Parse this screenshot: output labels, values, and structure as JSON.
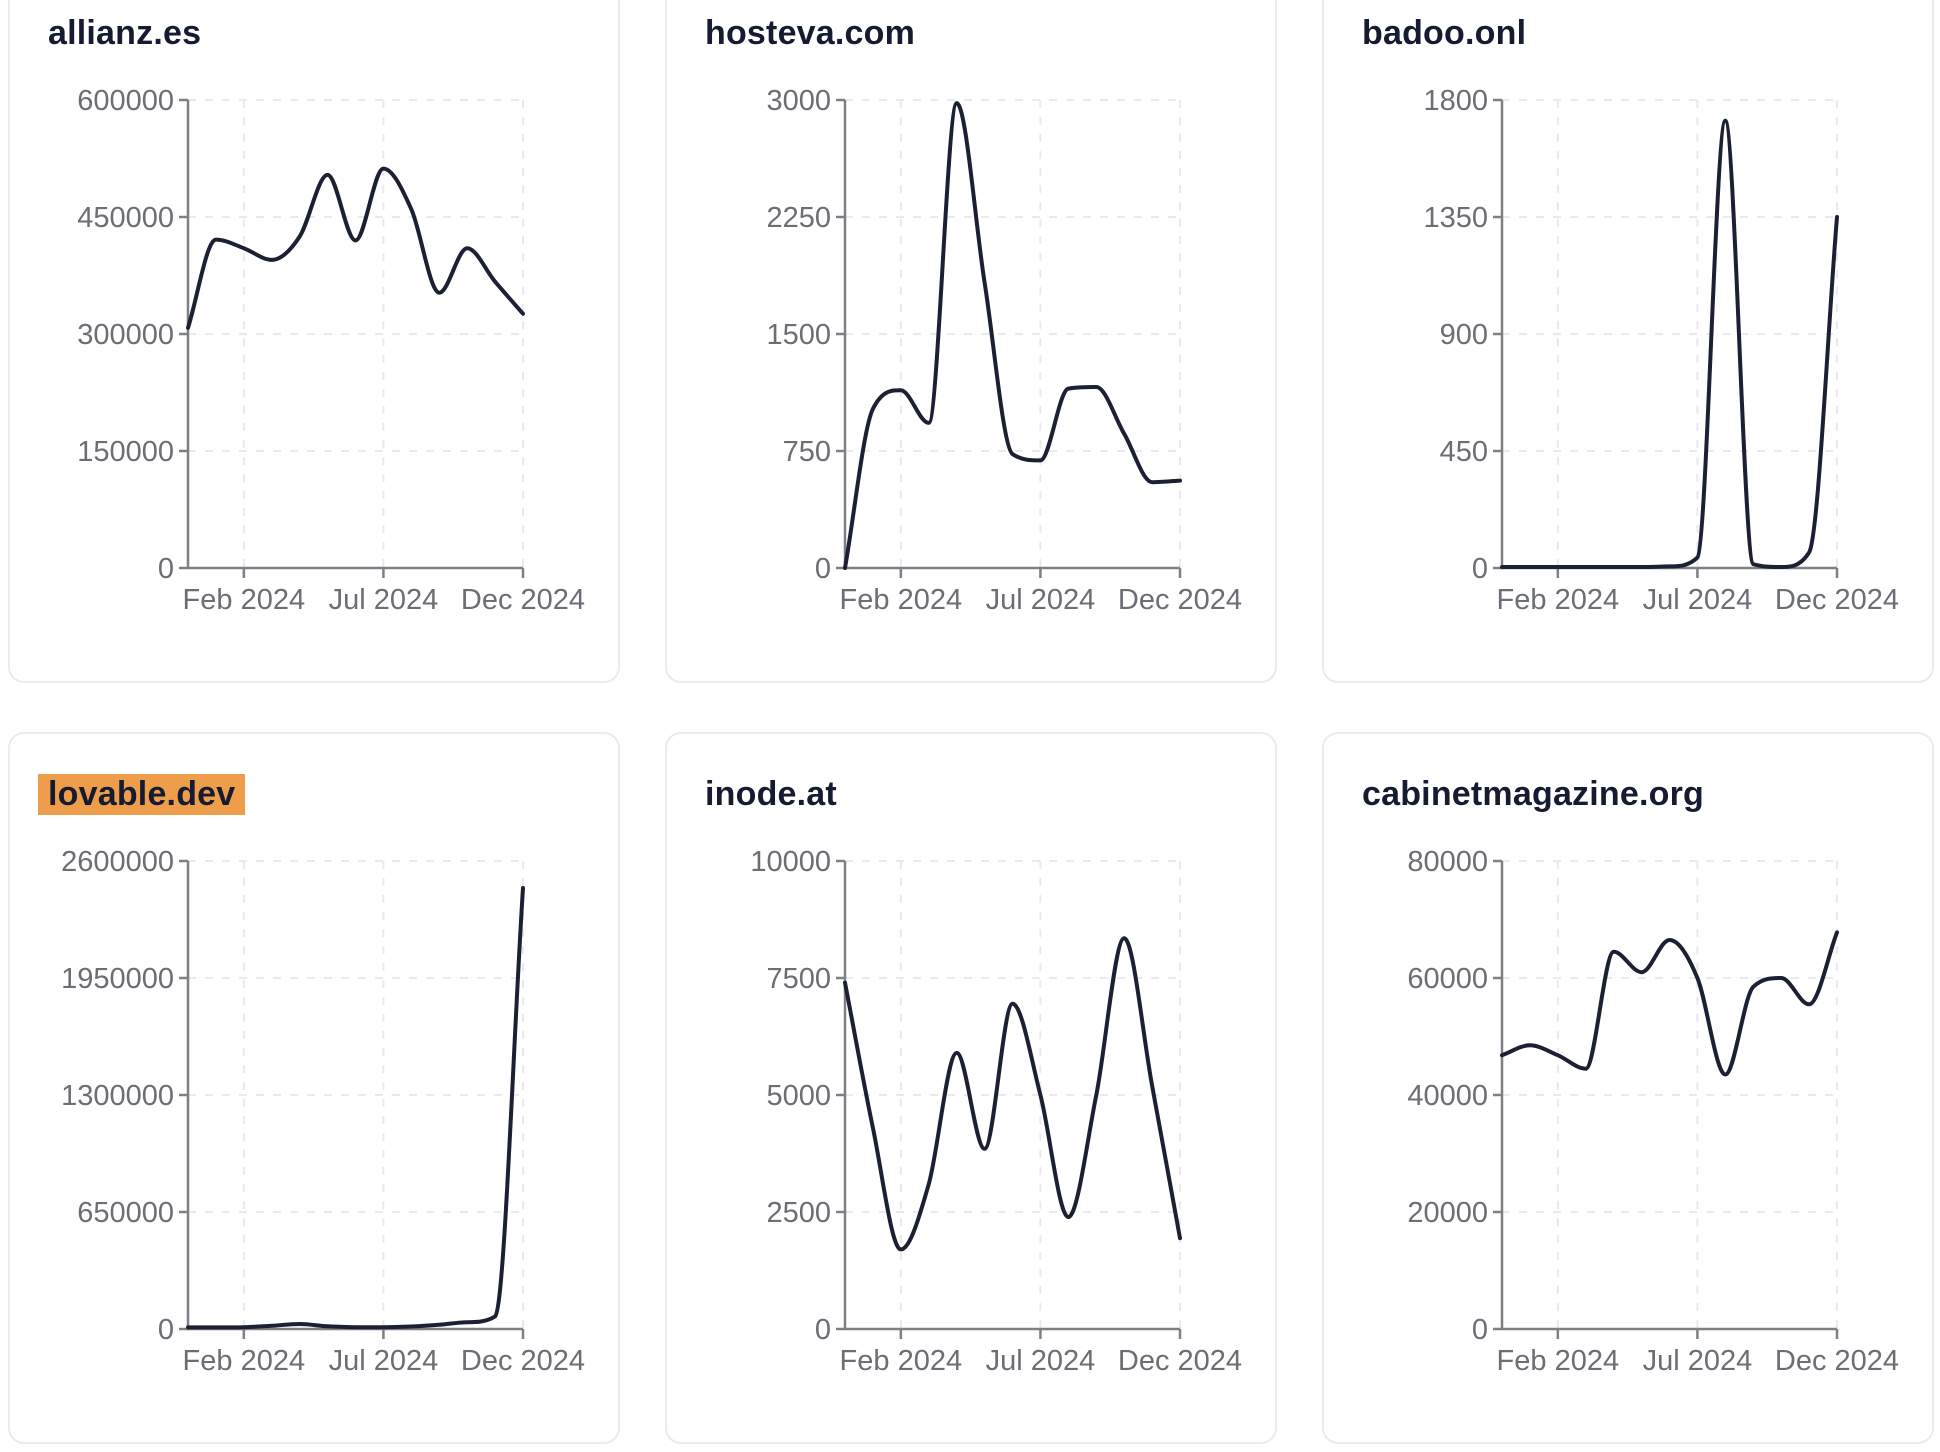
{
  "style": {
    "page_background": "#ffffff",
    "card_background": "#ffffff",
    "card_border": "#e9ebf0",
    "title_color": "#151b30",
    "highlight_color": "#ee9d4a",
    "line_color": "#1b2133",
    "axis_color": "#7e8085",
    "tick_label_color": "#6b6e74",
    "grid_color": "#e9e9ee"
  },
  "x_axis": {
    "interval": "month",
    "start": "2023-12",
    "end": "2024-12",
    "tick_labels": [
      "Feb 2024",
      "Jul 2024",
      "Dec 2024"
    ],
    "tick_month_offsets": [
      2,
      7,
      12
    ]
  },
  "chart_data": [
    {
      "type": "line",
      "title": "allianz.es",
      "highlighted": false,
      "ylim": [
        0,
        600000
      ],
      "y_ticks": [
        0,
        150000,
        300000,
        450000,
        600000
      ],
      "x_tick_labels": [
        "Feb 2024",
        "Jul 2024",
        "Dec 2024"
      ],
      "x_tick_month_offsets": [
        2,
        7,
        12
      ],
      "values": [
        308000,
        421000,
        410000,
        395000,
        425000,
        504000,
        420000,
        512000,
        460000,
        353000,
        410000,
        367000,
        326000
      ]
    },
    {
      "type": "line",
      "title": "hosteva.com",
      "highlighted": false,
      "ylim": [
        0,
        3000
      ],
      "y_ticks": [
        0,
        750,
        1500,
        2250,
        3000
      ],
      "x_tick_labels": [
        "Feb 2024",
        "Jul 2024",
        "Dec 2024"
      ],
      "x_tick_month_offsets": [
        2,
        7,
        12
      ],
      "values": [
        0,
        1020,
        1140,
        930,
        2980,
        1830,
        730,
        690,
        1150,
        1160,
        860,
        550,
        560
      ]
    },
    {
      "type": "line",
      "title": "badoo.onl",
      "highlighted": false,
      "ylim": [
        0,
        1800
      ],
      "y_ticks": [
        0,
        450,
        900,
        1350,
        1800
      ],
      "x_tick_labels": [
        "Feb 2024",
        "Jul 2024",
        "Dec 2024"
      ],
      "x_tick_month_offsets": [
        2,
        7,
        12
      ],
      "values": [
        4,
        4,
        4,
        4,
        4,
        4,
        6,
        40,
        1720,
        15,
        4,
        60,
        1350
      ]
    },
    {
      "type": "line",
      "title": "lovable.dev",
      "highlighted": true,
      "ylim": [
        0,
        2600000
      ],
      "y_ticks": [
        0,
        650000,
        1300000,
        1950000,
        2600000
      ],
      "x_tick_labels": [
        "Feb 2024",
        "Jul 2024",
        "Dec 2024"
      ],
      "x_tick_month_offsets": [
        2,
        7,
        12
      ],
      "values": [
        9000,
        9000,
        10000,
        18000,
        28000,
        15000,
        10000,
        10000,
        14000,
        24000,
        38000,
        70000,
        2450000
      ]
    },
    {
      "type": "line",
      "title": "inode.at",
      "highlighted": false,
      "ylim": [
        0,
        10000
      ],
      "y_ticks": [
        0,
        2500,
        5000,
        7500,
        10000
      ],
      "x_tick_labels": [
        "Feb 2024",
        "Jul 2024",
        "Dec 2024"
      ],
      "x_tick_month_offsets": [
        2,
        7,
        12
      ],
      "values": [
        7400,
        4300,
        1700,
        3100,
        5900,
        3850,
        6950,
        5000,
        2390,
        5000,
        8350,
        5200,
        1940
      ]
    },
    {
      "type": "line",
      "title": "cabinetmagazine.org",
      "highlighted": false,
      "ylim": [
        0,
        80000
      ],
      "y_ticks": [
        0,
        20000,
        40000,
        60000,
        80000
      ],
      "x_tick_labels": [
        "Feb 2024",
        "Jul 2024",
        "Dec 2024"
      ],
      "x_tick_month_offsets": [
        2,
        7,
        12
      ],
      "values": [
        46800,
        48500,
        46800,
        44500,
        64500,
        61000,
        66500,
        60000,
        43500,
        58500,
        60000,
        55500,
        67800
      ]
    }
  ]
}
